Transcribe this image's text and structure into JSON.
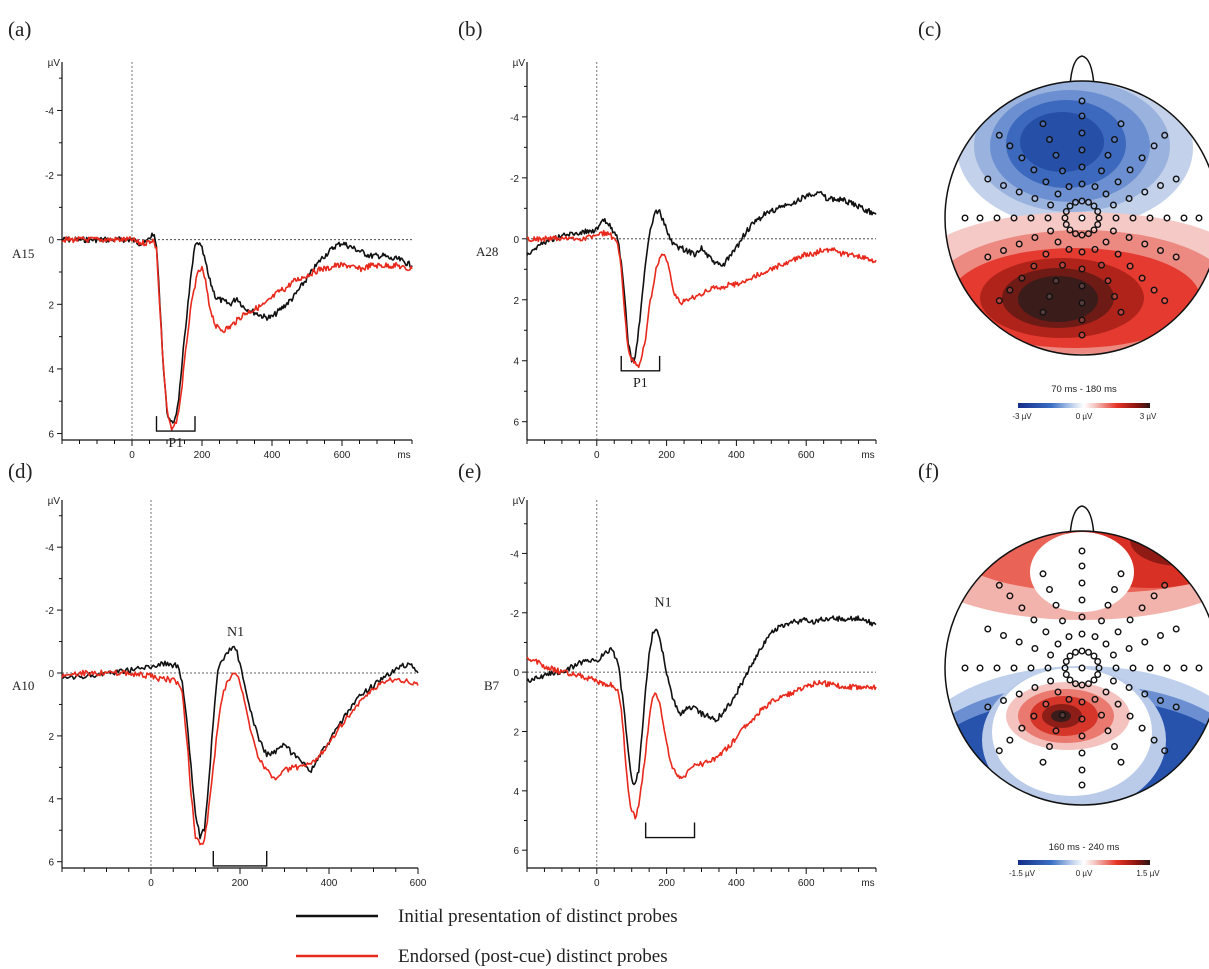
{
  "colors": {
    "initial": "#111111",
    "endorsed": "#e8291c"
  },
  "legend": {
    "initial": "Initial presentation of distinct probes",
    "endorsed": "Endorsed (post-cue) distinct probes"
  },
  "chart_data": [
    {
      "type": "line",
      "panel": "(a)",
      "channel": "A15",
      "component": "P1",
      "ylabel": "µV",
      "ylim": [
        -5.5,
        6.2
      ],
      "yticks": [
        -4,
        -2,
        0,
        2,
        4,
        6
      ],
      "xlim": [
        -200,
        800
      ],
      "xticks": [
        0,
        200,
        400,
        600
      ],
      "xunit": "ms",
      "window": [
        70,
        180
      ],
      "series": [
        {
          "name": "Initial presentation of distinct probes",
          "key": "initial",
          "x": [
            -200,
            -150,
            -100,
            -50,
            0,
            20,
            40,
            60,
            70,
            80,
            90,
            100,
            110,
            120,
            130,
            140,
            150,
            160,
            170,
            180,
            190,
            200,
            210,
            220,
            240,
            260,
            280,
            300,
            320,
            340,
            360,
            380,
            400,
            420,
            440,
            460,
            480,
            500,
            520,
            540,
            560,
            580,
            600,
            620,
            640,
            660,
            680,
            700,
            720,
            740,
            760,
            780,
            800
          ],
          "y": [
            0,
            0,
            0,
            0,
            0,
            0.1,
            0.1,
            -0.2,
            0.2,
            2,
            4,
            5.3,
            5.7,
            5.6,
            5.2,
            4.3,
            3,
            2,
            1,
            0.2,
            0.1,
            0.3,
            0.7,
            1.2,
            1.8,
            1.9,
            2,
            1.8,
            2.1,
            2.2,
            2.3,
            2.4,
            2.4,
            2.2,
            2,
            1.8,
            1.5,
            1.2,
            0.9,
            0.6,
            0.4,
            0.2,
            0.1,
            0.2,
            0.3,
            0.4,
            0.5,
            0.5,
            0.5,
            0.6,
            0.6,
            0.7,
            0.8
          ]
        },
        {
          "name": "Endorsed (post-cue) distinct probes",
          "key": "endorsed",
          "x": [
            -200,
            -150,
            -100,
            -50,
            0,
            20,
            40,
            60,
            70,
            80,
            90,
            100,
            110,
            120,
            130,
            140,
            150,
            160,
            170,
            180,
            190,
            200,
            210,
            220,
            240,
            260,
            280,
            300,
            320,
            340,
            360,
            380,
            400,
            420,
            440,
            460,
            480,
            500,
            520,
            540,
            560,
            580,
            600,
            620,
            640,
            660,
            680,
            700,
            720,
            740,
            760,
            780,
            800
          ],
          "y": [
            0,
            0,
            0,
            0,
            0,
            0.1,
            0.1,
            0,
            0.3,
            2.2,
            4,
            5.3,
            5.8,
            5.8,
            5.5,
            4.8,
            3.8,
            2.8,
            2,
            1.4,
            1,
            0.9,
            1.3,
            2,
            2.7,
            2.8,
            2.7,
            2.5,
            2.3,
            2.2,
            2.1,
            2,
            1.8,
            1.6,
            1.5,
            1.3,
            1.2,
            1.1,
            1,
            0.9,
            0.9,
            0.8,
            0.8,
            0.8,
            0.9,
            0.9,
            0.8,
            0.8,
            0.8,
            0.8,
            0.8,
            0.9,
            0.9
          ]
        }
      ]
    },
    {
      "type": "line",
      "panel": "(b)",
      "channel": "A28",
      "component": "P1",
      "ylabel": "µV",
      "ylim": [
        -5.8,
        6.6
      ],
      "yticks": [
        -4,
        -2,
        0,
        2,
        4,
        6
      ],
      "xlim": [
        -200,
        800
      ],
      "xticks": [
        0,
        200,
        400,
        600
      ],
      "xunit": "ms",
      "window": [
        70,
        180
      ],
      "series": [
        {
          "name": "Initial presentation of distinct probes",
          "key": "initial",
          "x": [
            -200,
            -150,
            -100,
            -50,
            0,
            20,
            40,
            60,
            70,
            80,
            90,
            100,
            110,
            120,
            130,
            140,
            150,
            160,
            170,
            180,
            190,
            200,
            210,
            220,
            240,
            260,
            280,
            300,
            320,
            340,
            360,
            380,
            400,
            420,
            440,
            460,
            480,
            500,
            520,
            540,
            560,
            580,
            600,
            620,
            640,
            660,
            680,
            700,
            720,
            740,
            760,
            780,
            800
          ],
          "y": [
            0.5,
            0.1,
            -0.1,
            -0.2,
            -0.3,
            -0.6,
            -0.4,
            0,
            0.8,
            2,
            3.4,
            4,
            3.9,
            3,
            1.9,
            0.8,
            -0.1,
            -0.6,
            -0.9,
            -0.9,
            -0.6,
            -0.3,
            0,
            0.2,
            0.3,
            0.4,
            0.5,
            0.3,
            0.6,
            0.8,
            0.9,
            0.6,
            0.3,
            -0.1,
            -0.4,
            -0.6,
            -0.8,
            -0.9,
            -1,
            -1.1,
            -1.1,
            -1.3,
            -1.4,
            -1.5,
            -1.5,
            -1.3,
            -1.3,
            -1.3,
            -1.2,
            -1.1,
            -1,
            -0.9,
            -0.8
          ]
        },
        {
          "name": "Endorsed (post-cue) distinct probes",
          "key": "endorsed",
          "x": [
            -200,
            -150,
            -100,
            -50,
            0,
            20,
            40,
            60,
            70,
            80,
            90,
            100,
            110,
            120,
            130,
            140,
            150,
            160,
            170,
            180,
            190,
            200,
            210,
            220,
            240,
            260,
            280,
            300,
            320,
            340,
            360,
            380,
            400,
            420,
            440,
            460,
            480,
            500,
            520,
            540,
            560,
            580,
            600,
            620,
            640,
            660,
            680,
            700,
            720,
            740,
            760,
            780,
            800
          ],
          "y": [
            0,
            0,
            0,
            0,
            -0.1,
            -0.2,
            -0.1,
            0.2,
            1,
            2.5,
            3.6,
            4,
            4,
            4.2,
            3.8,
            3.2,
            2.3,
            1.6,
            1,
            0.6,
            0.5,
            0.7,
            1.2,
            1.8,
            2.1,
            2,
            1.9,
            1.8,
            1.7,
            1.6,
            1.6,
            1.5,
            1.5,
            1.4,
            1.3,
            1.2,
            1.1,
            1,
            0.9,
            0.8,
            0.7,
            0.6,
            0.5,
            0.5,
            0.4,
            0.4,
            0.3,
            0.5,
            0.5,
            0.6,
            0.6,
            0.7,
            0.7
          ]
        }
      ]
    },
    {
      "type": "topomap",
      "panel": "(c)",
      "colorbar_title": "70 ms - 180 ms",
      "colorbar_ticks": [
        "-3 µV",
        "0 µV",
        "3 µV"
      ],
      "vmin": -3,
      "vmax": 3
    },
    {
      "type": "line",
      "panel": "(d)",
      "channel": "A10",
      "component": "N1",
      "ylabel": "µV",
      "ylim": [
        -5.5,
        6.2
      ],
      "yticks": [
        -4,
        -2,
        0,
        2,
        4,
        6
      ],
      "xlim": [
        -200,
        600
      ],
      "xticks": [
        0,
        200,
        400,
        600
      ],
      "xunit": "",
      "window": [
        140,
        260
      ],
      "series": [
        {
          "name": "Initial presentation of distinct probes",
          "key": "initial",
          "x": [
            -200,
            -150,
            -100,
            -50,
            0,
            20,
            40,
            60,
            70,
            80,
            90,
            100,
            110,
            120,
            130,
            140,
            150,
            160,
            170,
            180,
            190,
            200,
            210,
            220,
            240,
            260,
            280,
            300,
            320,
            340,
            360,
            380,
            400,
            420,
            440,
            460,
            480,
            500,
            520,
            540,
            560,
            580,
            600
          ],
          "y": [
            0.2,
            0.1,
            0,
            -0.1,
            -0.2,
            -0.3,
            -0.3,
            -0.2,
            0.3,
            1.5,
            3,
            4.5,
            5.2,
            5,
            3.5,
            1.5,
            0,
            -0.4,
            -0.6,
            -0.8,
            -0.8,
            -0.3,
            0.4,
            1,
            2,
            2.6,
            2.5,
            2.3,
            2.6,
            2.9,
            3.1,
            2.6,
            2.2,
            1.7,
            1.3,
            0.9,
            0.6,
            0.4,
            0.2,
            0,
            -0.2,
            -0.3,
            0
          ]
        },
        {
          "name": "Endorsed (post-cue) distinct probes",
          "key": "endorsed",
          "x": [
            -200,
            -150,
            -100,
            -50,
            0,
            20,
            40,
            60,
            70,
            80,
            90,
            100,
            110,
            120,
            130,
            140,
            150,
            160,
            170,
            180,
            190,
            200,
            210,
            220,
            240,
            260,
            280,
            300,
            320,
            340,
            360,
            380,
            400,
            420,
            440,
            460,
            480,
            500,
            520,
            540,
            560,
            580,
            600
          ],
          "y": [
            0.1,
            0,
            0,
            0,
            0.1,
            0.2,
            0.2,
            0.3,
            0.6,
            2,
            3.8,
            5.2,
            5.5,
            5.3,
            4.3,
            3,
            1.7,
            0.8,
            0.3,
            0.1,
            0,
            0.3,
            0.9,
            1.6,
            2.6,
            3.1,
            3.4,
            3.1,
            3,
            3,
            2.9,
            2.6,
            2.2,
            1.8,
            1.4,
            1.1,
            0.8,
            0.5,
            0.3,
            0.2,
            0.2,
            0.3,
            0.4
          ]
        }
      ]
    },
    {
      "type": "line",
      "panel": "(e)",
      "channel": "B7",
      "component": "N1",
      "ylabel": "µV",
      "ylim": [
        -5.8,
        6.6
      ],
      "yticks": [
        -4,
        -2,
        0,
        2,
        4,
        6
      ],
      "xlim": [
        -200,
        800
      ],
      "xticks": [
        0,
        200,
        400,
        600
      ],
      "xunit": "ms",
      "window": [
        140,
        280
      ],
      "series": [
        {
          "name": "Initial presentation of distinct probes",
          "key": "initial",
          "x": [
            -200,
            -150,
            -100,
            -50,
            0,
            20,
            40,
            60,
            70,
            80,
            90,
            100,
            110,
            120,
            130,
            140,
            150,
            160,
            170,
            180,
            190,
            200,
            210,
            220,
            240,
            260,
            280,
            300,
            320,
            340,
            360,
            380,
            400,
            420,
            440,
            460,
            480,
            500,
            520,
            540,
            560,
            580,
            600,
            620,
            640,
            660,
            680,
            700,
            720,
            740,
            760,
            780,
            800
          ],
          "y": [
            0.3,
            0.1,
            0,
            -0.3,
            -0.4,
            -0.6,
            -0.8,
            -0.4,
            0.5,
            1.5,
            2.7,
            3.6,
            3.8,
            3.3,
            2.1,
            0.6,
            -0.6,
            -1.3,
            -1.4,
            -1.2,
            -0.6,
            0,
            0.5,
            1,
            1.4,
            1.2,
            1.2,
            1.4,
            1.5,
            1.6,
            1.4,
            1.1,
            0.7,
            0.3,
            -0.2,
            -0.6,
            -1,
            -1.3,
            -1.5,
            -1.6,
            -1.7,
            -1.7,
            -1.8,
            -1.7,
            -1.8,
            -1.8,
            -1.8,
            -1.8,
            -1.8,
            -1.8,
            -1.8,
            -1.7,
            -1.6
          ]
        },
        {
          "name": "Endorsed (post-cue) distinct probes",
          "key": "endorsed",
          "x": [
            -200,
            -150,
            -100,
            -50,
            0,
            20,
            40,
            60,
            70,
            80,
            90,
            100,
            110,
            120,
            130,
            140,
            150,
            160,
            170,
            180,
            190,
            200,
            210,
            220,
            240,
            260,
            280,
            300,
            320,
            340,
            360,
            380,
            400,
            420,
            440,
            460,
            480,
            500,
            520,
            540,
            560,
            580,
            600,
            620,
            640,
            660,
            680,
            700,
            720,
            740,
            760,
            780,
            800
          ],
          "y": [
            -0.5,
            -0.2,
            0,
            0.1,
            0.3,
            0.4,
            0.4,
            0.6,
            1.2,
            2.6,
            4,
            4.7,
            4.9,
            4.5,
            3.7,
            2.7,
            1.6,
            0.8,
            0.7,
            1,
            1.8,
            2.4,
            2.9,
            3.3,
            3.6,
            3.4,
            3.1,
            3.1,
            3.0,
            2.9,
            2.7,
            2.5,
            2.2,
            1.9,
            1.7,
            1.4,
            1.2,
            1,
            0.9,
            0.8,
            0.7,
            0.6,
            0.5,
            0.4,
            0.3,
            0.4,
            0.4,
            0.5,
            0.5,
            0.5,
            0.5,
            0.5,
            0.5
          ]
        }
      ]
    },
    {
      "type": "topomap",
      "panel": "(f)",
      "colorbar_title": "160 ms - 240 ms",
      "colorbar_ticks": [
        "-1.5 µV",
        "0 µV",
        "1.5 µV"
      ],
      "vmin": -1.5,
      "vmax": 1.5
    }
  ]
}
